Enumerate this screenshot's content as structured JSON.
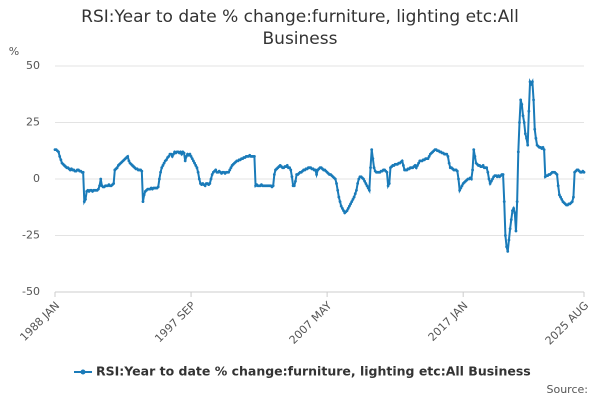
{
  "chart_data": {
    "type": "line",
    "title": "RSI:Year to date % change:furniture, lighting etc:All Business",
    "y_unit": "%",
    "source": "Source:",
    "categories": [
      "1988 JAN",
      null,
      null,
      null,
      null,
      null,
      null,
      null,
      null,
      null,
      null,
      null,
      null,
      null,
      null,
      null,
      null,
      null,
      null,
      null,
      null,
      null,
      null,
      null,
      null,
      null,
      null,
      null,
      null,
      null,
      null,
      null,
      null,
      null,
      null,
      null,
      null,
      null,
      null,
      null,
      null,
      null,
      null,
      null,
      null,
      null,
      null,
      null,
      null,
      null,
      null,
      null,
      null,
      null,
      null,
      null,
      null,
      null,
      null,
      null,
      null,
      null,
      null,
      null,
      null,
      null,
      null,
      null,
      null,
      null,
      null,
      null,
      null,
      null,
      null,
      null,
      null,
      null,
      null,
      null,
      null,
      null,
      null,
      null,
      null,
      null,
      null,
      null,
      null,
      null,
      null,
      null,
      null,
      null,
      null,
      null,
      null,
      null,
      null,
      null,
      null,
      null,
      null,
      null,
      null,
      null,
      null,
      null,
      null,
      null,
      null,
      null,
      null,
      null,
      null,
      null,
      "1997 SEP",
      null,
      null,
      null,
      null,
      null,
      null,
      null,
      null,
      null,
      null,
      null,
      null,
      null,
      null,
      null,
      null,
      null,
      null,
      null,
      null,
      null,
      null,
      null,
      null,
      null,
      null,
      null,
      null,
      null,
      null,
      null,
      null,
      null,
      null,
      null,
      null,
      null,
      null,
      null,
      null,
      null,
      null,
      null,
      null,
      null,
      null,
      null,
      null,
      null,
      null,
      null,
      null,
      null,
      null,
      null,
      null,
      null,
      null,
      null,
      null,
      null,
      null,
      null,
      null,
      null,
      null,
      null,
      null,
      null,
      null,
      null,
      null,
      null,
      null,
      null,
      null,
      null,
      null,
      null,
      null,
      null,
      null,
      null,
      null,
      null,
      null,
      null,
      null,
      null,
      null,
      null,
      null,
      null,
      null,
      null,
      null,
      null,
      null,
      null,
      null,
      null,
      null,
      null,
      null,
      null,
      null,
      null,
      null,
      null,
      null,
      null,
      null,
      null,
      null,
      null,
      "2007 MAY",
      null,
      null,
      null,
      null,
      null,
      null,
      null,
      null,
      null,
      null,
      null,
      null,
      null,
      null,
      null,
      null,
      null,
      null,
      null,
      null,
      null,
      null,
      null,
      null,
      null,
      null,
      null,
      null,
      null,
      null,
      null,
      null,
      null,
      null,
      null,
      null,
      null,
      null,
      null,
      null,
      null,
      null,
      null,
      null,
      null,
      null,
      null,
      null,
      null,
      null,
      null,
      null,
      null,
      null,
      null,
      null,
      null,
      null,
      null,
      null,
      null,
      null,
      null,
      null,
      null,
      null,
      null,
      null,
      null,
      null,
      null,
      null,
      null,
      null,
      null,
      null,
      null,
      null,
      null,
      null,
      null,
      null,
      null,
      null,
      null,
      null,
      null,
      null,
      null,
      null,
      null,
      null,
      null,
      null,
      null,
      null,
      null,
      null,
      null,
      null,
      null,
      null,
      null,
      null,
      null,
      null,
      null,
      null,
      null,
      null,
      null,
      null,
      null,
      null,
      null,
      "2017 JAN",
      null,
      null,
      null,
      null,
      null,
      null,
      null,
      null,
      null,
      null,
      null,
      null,
      null,
      null,
      null,
      null,
      null,
      null,
      null,
      null,
      null,
      null,
      null,
      null,
      null,
      null,
      null,
      null,
      null,
      null,
      null,
      null,
      null,
      null,
      null,
      null,
      null,
      null,
      null,
      null,
      null,
      null,
      null,
      null,
      null,
      null,
      null,
      null,
      null,
      null,
      null,
      null,
      null,
      null,
      null,
      null,
      null,
      null,
      null,
      null,
      null,
      null,
      null,
      null,
      null,
      null,
      null,
      null,
      null,
      null,
      null,
      null,
      null,
      null,
      null,
      null,
      null,
      null,
      null,
      null,
      null,
      null,
      null,
      null,
      null,
      null,
      null,
      null,
      null,
      null,
      null,
      null,
      null,
      null,
      null,
      null,
      null,
      null,
      null,
      null,
      null,
      null,
      "2025 AUG"
    ],
    "series": [
      {
        "name": "RSI:Year to date % change:furniture, lighting etc:All Business",
        "color": "#1a7bb9",
        "values": [
          13,
          13,
          12.5,
          12,
          10,
          8.5,
          7,
          6.5,
          6,
          5.5,
          5,
          5,
          4.5,
          4,
          4.5,
          4,
          4,
          3.5,
          3.5,
          4,
          4,
          3.5,
          3.5,
          3,
          3,
          -10,
          -9,
          -5.5,
          -5,
          -5.5,
          -5,
          -5,
          -5.5,
          -5,
          -5,
          -5,
          -5,
          -4.5,
          -3,
          0,
          -3,
          -3.5,
          -3.5,
          -3,
          -3,
          -3,
          -2.5,
          -3,
          -3,
          -2.5,
          -2,
          4,
          4.5,
          5,
          6,
          6.5,
          7,
          7.5,
          8,
          8.5,
          9,
          9.5,
          10,
          8,
          7,
          6.5,
          6,
          5.5,
          5,
          4.5,
          4.5,
          4,
          4,
          4,
          3.5,
          -10,
          -7,
          -5.5,
          -5,
          -4.5,
          -4.5,
          -4.5,
          -4,
          -4.5,
          -4,
          -4,
          -4,
          -4,
          -3.5,
          0,
          3,
          5,
          6,
          7,
          8,
          8.5,
          9.5,
          10,
          11,
          11,
          10,
          11,
          12,
          11.5,
          12,
          12,
          11.5,
          12,
          11,
          12,
          11.5,
          8,
          10,
          11,
          10.5,
          11,
          10,
          9,
          8,
          7,
          6,
          5,
          3,
          0,
          -2,
          -2.5,
          -2,
          -2.5,
          -3,
          -2,
          -2,
          -2.5,
          -2,
          0,
          2,
          3,
          3.5,
          4,
          3,
          3,
          3.5,
          3,
          2.5,
          3,
          3,
          2.5,
          3,
          3,
          3,
          4,
          5,
          6,
          6.5,
          7,
          7.5,
          8,
          8,
          8.5,
          8.5,
          9,
          9,
          9.5,
          9.5,
          10,
          10,
          10,
          10.5,
          10,
          10,
          10,
          10,
          -3,
          -2.5,
          -3,
          -3,
          -3,
          -2.5,
          -3,
          -3,
          -3,
          -3,
          -3,
          -3,
          -3,
          -3,
          -3.5,
          -3,
          2,
          4,
          4.5,
          5,
          5.5,
          6,
          5.5,
          5,
          5,
          5.5,
          5.5,
          6,
          5,
          5,
          4,
          1,
          -3,
          -3,
          -1,
          2,
          2,
          2.5,
          3,
          3,
          3.5,
          4,
          4,
          4.5,
          4.5,
          5,
          5,
          5,
          4.5,
          4.5,
          4,
          4,
          2,
          4,
          4.5,
          5,
          5,
          4.5,
          4,
          4,
          3.5,
          3,
          2.5,
          2,
          2,
          1.5,
          1,
          0.5,
          0,
          -2,
          -5,
          -8,
          -10,
          -12,
          -13,
          -14,
          -15,
          -14.5,
          -14,
          -13,
          -12,
          -11,
          -10,
          -9,
          -8,
          -6.5,
          -5,
          -2,
          0,
          1,
          1,
          0.5,
          0,
          -1,
          -2,
          -3,
          -4,
          -5,
          5,
          13,
          9,
          5,
          3.5,
          3,
          3,
          3,
          3,
          3.5,
          3.5,
          4,
          4,
          3.5,
          3,
          -3,
          -2,
          5,
          5.5,
          6,
          6,
          6.5,
          6.5,
          6.5,
          7,
          7,
          7.5,
          8,
          6,
          4,
          4,
          4,
          4.5,
          4.5,
          5,
          5,
          5,
          5.5,
          6,
          5,
          6,
          7,
          8,
          8,
          8,
          8.5,
          8.5,
          9,
          9,
          9,
          10,
          11,
          11.5,
          12,
          12.5,
          13,
          13,
          12.5,
          12.5,
          12,
          12,
          11.5,
          11.5,
          11,
          11,
          11,
          10,
          7,
          5,
          5,
          4.5,
          4,
          4,
          4,
          3.5,
          0,
          -5,
          -4,
          -3,
          -2,
          -1.5,
          -1,
          -0.5,
          0,
          0,
          0.5,
          0,
          4,
          13,
          10,
          7,
          6.5,
          6,
          6,
          5.5,
          5.5,
          6,
          5,
          5,
          5,
          3,
          0,
          -2,
          -1,
          0,
          1,
          1.5,
          1.5,
          1,
          1.5,
          1,
          1.5,
          2,
          2,
          -10,
          -25,
          -30,
          -32,
          -27,
          -22,
          -18,
          -14,
          -13,
          -15,
          -23,
          -10,
          12,
          25,
          35,
          33,
          28,
          25,
          20,
          18,
          15,
          30,
          43,
          42,
          43,
          35,
          22,
          18,
          15,
          14.5,
          14,
          14,
          13.5,
          14,
          13,
          1,
          1.5,
          1.5,
          2,
          2,
          2.5,
          3,
          3,
          3,
          2.5,
          2,
          -3,
          -7,
          -8,
          -9,
          -10,
          -10.5,
          -11,
          -11.5,
          -11.5,
          -11,
          -11,
          -10.5,
          -10,
          -8,
          3,
          3.5,
          4,
          4,
          3.5,
          3,
          3,
          3.5,
          3
        ]
      }
    ],
    "ylim": [
      -50,
      50
    ],
    "yticks": [
      -50,
      -25,
      0,
      25,
      50
    ],
    "grid": true,
    "markers": true,
    "legend": "bottom"
  }
}
